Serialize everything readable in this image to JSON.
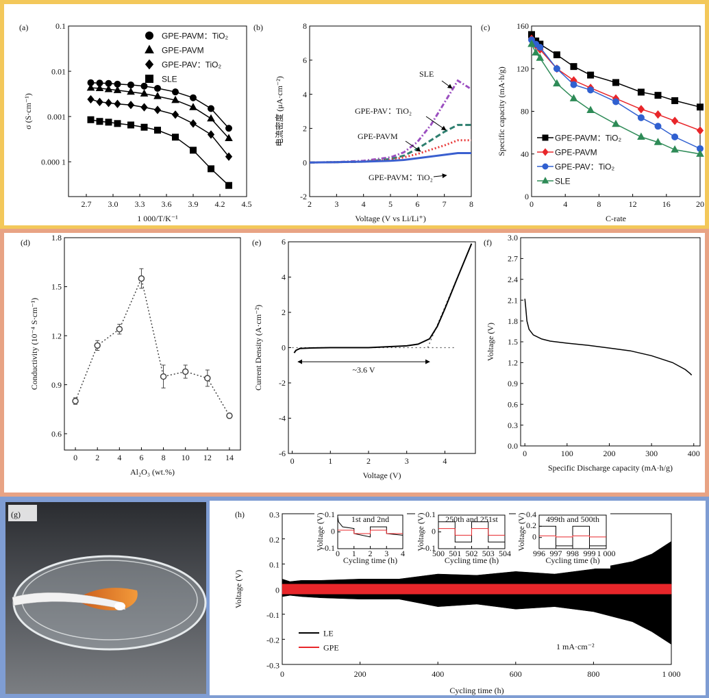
{
  "chart_data": [
    {
      "type": "line",
      "label": "(a)",
      "ylabel": "σ (S·cm⁻¹)",
      "xlabel": "1 000/T/K⁻¹",
      "ylog": true,
      "xlim": [
        2.5,
        4.5
      ],
      "xticks": [
        2.7,
        {
          "value": 3,
          "label": "3.0"
        },
        3.3,
        3.6,
        3.9,
        4.2,
        4.5
      ],
      "ylim": [
        1.7e-05,
        0.1
      ],
      "yticks": [
        {
          "value": 0.0001,
          "label": "0.000 1"
        },
        0.001,
        0.01,
        0.1
      ],
      "legend": "upper right",
      "x": [
        2.75,
        2.85,
        2.95,
        3.05,
        3.2,
        3.35,
        3.5,
        3.7,
        3.9,
        4.1,
        4.3
      ],
      "series": [
        {
          "name": "GPE-PAVM：TiO₂",
          "color": "#000000",
          "marker": "circle",
          "values": [
            0.0056,
            0.0055,
            0.0054,
            0.0052,
            0.005,
            0.0047,
            0.0042,
            0.0035,
            0.0026,
            0.0015,
            0.00055
          ]
        },
        {
          "name": "GPE-PAVM",
          "color": "#000000",
          "marker": "triangle",
          "values": [
            0.0043,
            0.0042,
            0.004,
            0.0038,
            0.0035,
            0.0032,
            0.0028,
            0.0023,
            0.0016,
            0.0009,
            0.00033
          ]
        },
        {
          "name": "GPE-PAV：TiO₂",
          "color": "#000000",
          "marker": "diamond",
          "values": [
            0.0024,
            0.0021,
            0.002,
            0.0019,
            0.0018,
            0.0016,
            0.0014,
            0.0011,
            0.0007,
            0.0004,
            0.00013
          ]
        },
        {
          "name": "SLE",
          "color": "#000000",
          "marker": "square",
          "values": [
            0.00085,
            0.00078,
            0.00075,
            0.0007,
            0.00065,
            0.00058,
            0.0005,
            0.00035,
            0.00018,
            7e-05,
            3e-05
          ]
        }
      ]
    },
    {
      "type": "line",
      "label": "(b)",
      "ylabel": "电流密度 (μA·cm⁻²)",
      "xlabel": "Voltage (V vs Li/Li⁺)",
      "xlim": [
        2,
        8
      ],
      "xticks": [
        2,
        3,
        4,
        5,
        6,
        7,
        8
      ],
      "ylim": [
        -2,
        8
      ],
      "yticks": [
        -2,
        0,
        2,
        4,
        6,
        8
      ],
      "series_labels": "arrows",
      "x": [
        2,
        3,
        4,
        5,
        5.5,
        6,
        6.5,
        7,
        7.5,
        8
      ],
      "series": [
        {
          "name": "SLE",
          "color": "#9b4fc0",
          "dash": "7 3 2 3",
          "width": 3,
          "values": [
            0,
            0.02,
            0.1,
            0.3,
            0.6,
            1.2,
            2.2,
            3.5,
            4.8,
            4.3
          ]
        },
        {
          "name": "GPE-PAV：TiO₂",
          "color": "#2e7f6f",
          "dash": "8 4",
          "width": 3,
          "values": [
            0,
            0.02,
            0.05,
            0.2,
            0.4,
            0.8,
            1.3,
            1.8,
            2.2,
            2.2
          ]
        },
        {
          "name": "GPE-PAVM",
          "color": "#e83a3a",
          "dash": "2 3",
          "width": 3,
          "values": [
            0,
            0.02,
            0.05,
            0.15,
            0.3,
            0.5,
            0.75,
            1.0,
            1.3,
            1.3
          ]
        },
        {
          "name": "GPE-PAVM：TiO₂",
          "color": "#3a5fcf",
          "width": 3,
          "values": [
            0,
            0.02,
            0.05,
            0.1,
            0.15,
            0.25,
            0.35,
            0.45,
            0.55,
            0.55
          ]
        }
      ]
    },
    {
      "type": "line",
      "label": "(c)",
      "ylabel": "Specific capacity (mA·h/g)",
      "xlabel": "C-rate",
      "xlim": [
        0,
        20
      ],
      "xticks": [
        0,
        4,
        8,
        12,
        16,
        20
      ],
      "ylim": [
        0,
        160
      ],
      "yticks": [
        0,
        40,
        80,
        120,
        160
      ],
      "legend": "lower left",
      "x": [
        0,
        0.5,
        1,
        3,
        5,
        7,
        10,
        13,
        15,
        17,
        20
      ],
      "series": [
        {
          "name": "GPE-PAVM：TiO₂",
          "color": "#000000",
          "marker": "square",
          "values": [
            152,
            146,
            143,
            133,
            122,
            114,
            107,
            98,
            95,
            90,
            84
          ]
        },
        {
          "name": "GPE-PAVM",
          "color": "#e8262a",
          "marker": "diamond",
          "values": [
            148,
            142,
            138,
            120,
            109,
            102,
            92,
            82,
            77,
            71,
            62
          ]
        },
        {
          "name": "GPE-PAV：TiO₂",
          "color": "#3060d0",
          "marker": "circle",
          "values": [
            147,
            143,
            140,
            120,
            105,
            100,
            89,
            74,
            66,
            56,
            45
          ]
        },
        {
          "name": "SLE",
          "color": "#2e8b57",
          "marker": "triangle",
          "values": [
            143,
            135,
            130,
            106,
            92,
            81,
            68,
            56,
            51,
            44,
            40
          ]
        }
      ]
    },
    {
      "type": "errorbar",
      "label": "(d)",
      "ylabel": "Conductivity (10⁻⁴ S·cm⁻¹)",
      "xlabel": "Al₂O₃ (wt.%)",
      "xlim": [
        -1,
        15
      ],
      "xticks": [
        0,
        2,
        4,
        6,
        8,
        10,
        12,
        14
      ],
      "ylim": [
        0.5,
        1.8
      ],
      "yticks": [
        0.6,
        0.9,
        1.2,
        1.5,
        1.8
      ],
      "color": "#444444",
      "dash": "2 3",
      "marker": "open-circle",
      "x": [
        0,
        2,
        4,
        6,
        8,
        10,
        12,
        14
      ],
      "values": [
        0.8,
        1.14,
        1.24,
        1.55,
        0.95,
        0.98,
        0.94,
        0.71
      ],
      "errors": [
        0.02,
        0.03,
        0.03,
        0.06,
        0.07,
        0.04,
        0.05,
        0.015
      ]
    },
    {
      "type": "line",
      "label": "(e)",
      "ylabel": "Current Density (A·cm⁻²)",
      "xlabel": "Voltage (V)",
      "xlim": [
        -0.1,
        4.8
      ],
      "xticks": [
        0,
        1,
        2,
        3,
        4
      ],
      "ylim": [
        -6,
        6
      ],
      "yticks": [
        -6,
        -4,
        -2,
        0,
        2,
        4,
        6
      ],
      "color": "#000000",
      "width": 2,
      "x": [
        0.05,
        0.1,
        0.2,
        0.5,
        1,
        2,
        3,
        3.3,
        3.6,
        3.8,
        4,
        4.3,
        4.7
      ],
      "values": [
        -0.3,
        -0.15,
        -0.05,
        -0.02,
        0,
        0,
        0.1,
        0.2,
        0.5,
        1.2,
        2.2,
        3.8,
        5.9
      ],
      "guides": [
        {
          "x": [
            0,
            4.3
          ],
          "y": [
            0,
            0
          ]
        },
        {
          "x": [
            3.55,
            4.7
          ],
          "y": [
            0,
            5.9
          ]
        }
      ],
      "annotation": {
        "text": "~3.6 V",
        "x": [
          0.15,
          3.6
        ],
        "y": -0.8
      }
    },
    {
      "type": "line",
      "label": "(f)",
      "ylabel": "Voltage (V)",
      "xlabel": "Specific Discharge capacity (mA·h/g)",
      "xlim": [
        -10,
        415
      ],
      "xticks": [
        0,
        100,
        200,
        300,
        400
      ],
      "ylim": [
        0,
        3
      ],
      "yticks": [
        {
          "value": 0,
          "label": "0.0"
        },
        0.3,
        0.6,
        0.9,
        1.2,
        1.5,
        1.8,
        2.1,
        2.4,
        2.7,
        {
          "value": 3,
          "label": "3.0"
        }
      ],
      "color": "#000000",
      "width": 1.5,
      "x": [
        0,
        2,
        5,
        10,
        20,
        40,
        60,
        100,
        150,
        200,
        250,
        300,
        350,
        380,
        390,
        395
      ],
      "values": [
        2.12,
        2.0,
        1.8,
        1.68,
        1.6,
        1.54,
        1.51,
        1.48,
        1.45,
        1.41,
        1.37,
        1.3,
        1.2,
        1.1,
        1.05,
        1.02
      ]
    },
    {
      "type": "image",
      "label": "(g)"
    },
    {
      "type": "band",
      "label": "(h)",
      "ylabel": "Voltage (V)",
      "xlabel": "Cycling time (h)",
      "xlim": [
        0,
        1000
      ],
      "xticks": [
        0,
        200,
        400,
        600,
        800,
        {
          "value": 1000,
          "label": "1 000"
        }
      ],
      "ylim": [
        -0.3,
        0.3
      ],
      "yticks": [
        -0.3,
        -0.2,
        -0.1,
        0,
        0.1,
        0.2,
        0.3
      ],
      "legend": "lower left",
      "note": "1 mA·cm⁻²",
      "series": [
        {
          "name": "LE",
          "color": "#000000",
          "x": [
            0,
            20,
            50,
            100,
            200,
            300,
            400,
            500,
            600,
            700,
            800,
            900,
            950,
            1000
          ],
          "upper": [
            0.04,
            0.03,
            0.035,
            0.035,
            0.04,
            0.04,
            0.06,
            0.055,
            0.07,
            0.06,
            0.08,
            0.11,
            0.14,
            0.19
          ],
          "lower": [
            -0.03,
            -0.025,
            -0.03,
            -0.035,
            -0.04,
            -0.04,
            -0.07,
            -0.06,
            -0.08,
            -0.07,
            -0.09,
            -0.13,
            -0.17,
            -0.22
          ]
        },
        {
          "name": "GPE",
          "color": "#e8262a",
          "x": [
            0,
            1000
          ],
          "upper": [
            0.02,
            0.02
          ],
          "lower": [
            -0.02,
            -0.02
          ]
        }
      ],
      "insets": [
        {
          "title": "1st and 2nd",
          "xlabel": "Cycling time (h)",
          "ylabel": "Voltage (V)",
          "xlim": [
            0,
            4
          ],
          "xticks": [
            0,
            1,
            2,
            3,
            4
          ],
          "ylim": [
            -0.1,
            0.1
          ],
          "yticks": [
            -0.1,
            0,
            0.1
          ],
          "lines": [
            {
              "color": "#000000",
              "x": [
                0,
                0.05,
                0.3,
                1,
                1,
                2,
                2,
                3,
                3,
                4
              ],
              "y": [
                0.09,
                0.06,
                0.03,
                0.02,
                -0.01,
                -0.03,
                0.03,
                0.03,
                -0.01,
                -0.02
              ]
            },
            {
              "color": "#e8262a",
              "x": [
                0,
                1,
                1,
                2,
                2,
                3,
                3,
                4
              ],
              "y": [
                0.01,
                0.01,
                -0.01,
                -0.01,
                0.01,
                0.01,
                -0.01,
                -0.01
              ]
            }
          ]
        },
        {
          "title": "250th and 251st",
          "xlabel": "Cycling time (h)",
          "ylabel": "Voltage (V)",
          "xlim": [
            500,
            504
          ],
          "xticks": [
            500,
            501,
            502,
            503,
            504
          ],
          "ylim": [
            -0.1,
            0.1
          ],
          "yticks": [
            -0.1,
            0,
            0.1
          ],
          "lines": [
            {
              "color": "#000000",
              "x": [
                500,
                501,
                501,
                502,
                502,
                503,
                503,
                504
              ],
              "y": [
                0.06,
                0.06,
                -0.06,
                -0.06,
                0.06,
                0.06,
                -0.06,
                -0.06
              ]
            },
            {
              "color": "#e8262a",
              "x": [
                500,
                501,
                501,
                502,
                502,
                503,
                503,
                504
              ],
              "y": [
                0.02,
                0.02,
                -0.02,
                -0.02,
                0.02,
                0.02,
                -0.02,
                -0.02
              ]
            }
          ]
        },
        {
          "title": "499th and 500th",
          "xlabel": "Cycling time (h)",
          "ylabel": "Voltage (V)",
          "xlim": [
            996,
            1000
          ],
          "xticks": [
            996,
            997,
            998,
            999,
            {
              "value": 1000,
              "label": "1 000"
            }
          ],
          "ylim": [
            -0.2,
            0.4
          ],
          "yticks": [
            0,
            0.2,
            0.4
          ],
          "lines": [
            {
              "color": "#000000",
              "x": [
                996,
                997,
                997,
                998,
                998,
                999,
                999,
                1000
              ],
              "y": [
                0.2,
                0.2,
                -0.15,
                -0.15,
                0.2,
                0.2,
                -0.15,
                -0.15
              ]
            },
            {
              "color": "#e8262a",
              "x": [
                996,
                997,
                997,
                998,
                998,
                999,
                999,
                1000
              ],
              "y": [
                0.03,
                0.03,
                0.01,
                0.01,
                0.03,
                0.03,
                0.01,
                0.01
              ]
            }
          ]
        }
      ]
    }
  ]
}
